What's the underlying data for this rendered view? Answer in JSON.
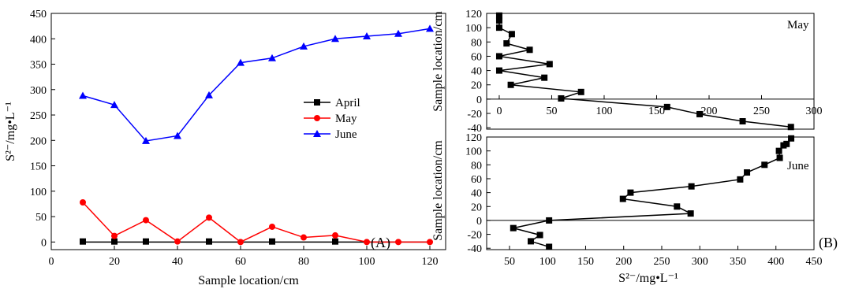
{
  "chart_data": [
    {
      "type": "line",
      "panel_label": "(A)",
      "xlabel": "Sample location/cm",
      "ylabel": "S²⁻/mg•L⁻¹",
      "xlim": [
        0,
        125
      ],
      "ylim": [
        -15,
        450
      ],
      "xticks": [
        0,
        20,
        40,
        60,
        80,
        100,
        120
      ],
      "yticks": [
        0,
        50,
        100,
        150,
        200,
        250,
        300,
        350,
        400,
        450
      ],
      "legend_position": "center-right",
      "series": [
        {
          "name": "April",
          "color": "#000000",
          "marker": "square",
          "x": [
            10,
            20,
            30,
            50,
            70,
            90
          ],
          "y": [
            1,
            1,
            1,
            1,
            1,
            1
          ],
          "line_x": [
            10,
            120
          ],
          "line_y": [
            0,
            0
          ]
        },
        {
          "name": "May",
          "color": "#ff0000",
          "marker": "circle",
          "x": [
            10,
            20,
            30,
            40,
            50,
            60,
            70,
            80,
            90,
            100,
            110,
            120
          ],
          "y": [
            78,
            12,
            43,
            1,
            48,
            0,
            30,
            9,
            13,
            0,
            0,
            0
          ]
        },
        {
          "name": "June",
          "color": "#0000ff",
          "marker": "triangle",
          "x": [
            10,
            20,
            30,
            40,
            50,
            60,
            70,
            80,
            90,
            100,
            110,
            120
          ],
          "y": [
            288,
            270,
            199,
            209,
            289,
            353,
            362,
            385,
            400,
            405,
            410,
            420
          ]
        }
      ]
    },
    {
      "type": "line",
      "panel_label": "(B)",
      "annotation": "May",
      "ylabel": "Sample location/cm",
      "xlim": [
        -12,
        300
      ],
      "ylim": [
        -42,
        120
      ],
      "xticks": [
        0,
        50,
        100,
        150,
        200,
        250,
        300
      ],
      "yticks": [
        -40,
        -20,
        0,
        20,
        40,
        60,
        80,
        100,
        120
      ],
      "series": [
        {
          "name": "May",
          "color": "#000000",
          "marker": "square",
          "x": [
            0,
            0,
            0,
            12,
            7,
            29,
            0,
            48,
            0,
            43,
            11,
            78,
            59,
            160,
            191,
            232,
            278
          ],
          "y": [
            117,
            110,
            100,
            91,
            78,
            69,
            60,
            49,
            40,
            30,
            20,
            10,
            1,
            -11,
            -21,
            -31,
            -39
          ]
        }
      ]
    },
    {
      "type": "line",
      "panel_label": "",
      "annotation": "June",
      "xlabel": "S²⁻/mg•L⁻¹",
      "ylabel": "Sample location/cm",
      "xlim": [
        20,
        450
      ],
      "ylim": [
        -42,
        120
      ],
      "xticks": [
        50,
        100,
        150,
        200,
        250,
        300,
        350,
        400,
        450
      ],
      "yticks": [
        -40,
        -20,
        0,
        20,
        40,
        60,
        80,
        100,
        120
      ],
      "series": [
        {
          "name": "June",
          "color": "#000000",
          "marker": "square",
          "x": [
            420,
            414,
            410,
            404,
            405,
            385,
            362,
            353,
            289,
            209,
            199,
            270,
            288,
            102,
            55,
            90,
            78,
            102
          ],
          "y": [
            118,
            110,
            108,
            100,
            90,
            80,
            69,
            59,
            49,
            40,
            31,
            20,
            10,
            0,
            -11,
            -21,
            -30,
            -38
          ]
        }
      ]
    }
  ]
}
